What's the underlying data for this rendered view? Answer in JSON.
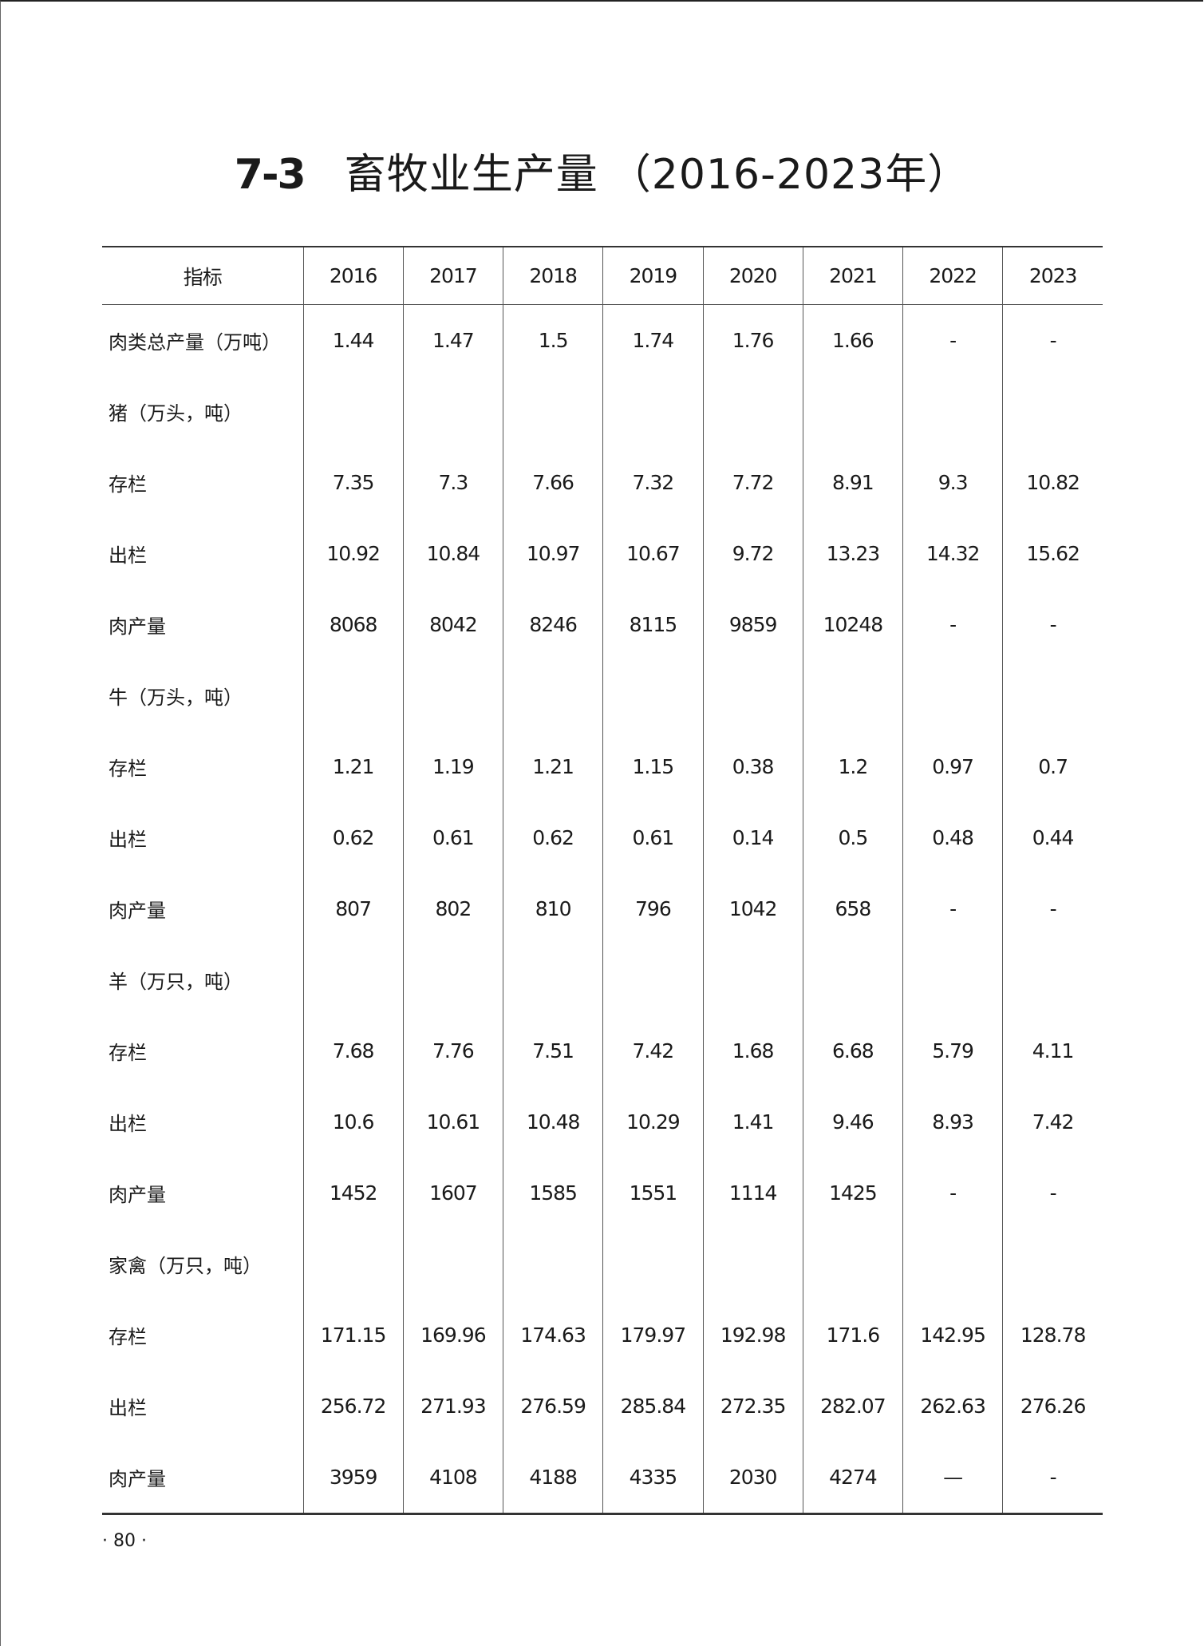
{
  "title": {
    "number": "7-3",
    "text": "畜牧业生产量",
    "range": "（2016-2023年）"
  },
  "table": {
    "headers": [
      "指标",
      "2016",
      "2017",
      "2018",
      "2019",
      "2020",
      "2021",
      "2022",
      "2023"
    ],
    "rows": [
      [
        "肉类总产量（万吨）",
        "1.44",
        "1.47",
        "1.5",
        "1.74",
        "1.76",
        "1.66",
        "-",
        "-"
      ],
      [
        "猪（万头，吨）",
        "",
        "",
        "",
        "",
        "",
        "",
        "",
        ""
      ],
      [
        "存栏",
        "7.35",
        "7.3",
        "7.66",
        "7.32",
        "7.72",
        "8.91",
        "9.3",
        "10.82"
      ],
      [
        "出栏",
        "10.92",
        "10.84",
        "10.97",
        "10.67",
        "9.72",
        "13.23",
        "14.32",
        "15.62"
      ],
      [
        "肉产量",
        "8068",
        "8042",
        "8246",
        "8115",
        "9859",
        "10248",
        "-",
        "-"
      ],
      [
        "牛（万头，吨）",
        "",
        "",
        "",
        "",
        "",
        "",
        "",
        ""
      ],
      [
        "存栏",
        "1.21",
        "1.19",
        "1.21",
        "1.15",
        "0.38",
        "1.2",
        "0.97",
        "0.7"
      ],
      [
        "出栏",
        "0.62",
        "0.61",
        "0.62",
        "0.61",
        "0.14",
        "0.5",
        "0.48",
        "0.44"
      ],
      [
        "肉产量",
        "807",
        "802",
        "810",
        "796",
        "1042",
        "658",
        "-",
        "-"
      ],
      [
        "羊（万只，吨）",
        "",
        "",
        "",
        "",
        "",
        "",
        "",
        ""
      ],
      [
        "存栏",
        "7.68",
        "7.76",
        "7.51",
        "7.42",
        "1.68",
        "6.68",
        "5.79",
        "4.11"
      ],
      [
        "出栏",
        "10.6",
        "10.61",
        "10.48",
        "10.29",
        "1.41",
        "9.46",
        "8.93",
        "7.42"
      ],
      [
        "肉产量",
        "1452",
        "1607",
        "1585",
        "1551",
        "1114",
        "1425",
        "-",
        "-"
      ],
      [
        "家禽（万只，吨）",
        "",
        "",
        "",
        "",
        "",
        "",
        "",
        ""
      ],
      [
        "存栏",
        "171.15",
        "169.96",
        "174.63",
        "179.97",
        "192.98",
        "171.6",
        "142.95",
        "128.78"
      ],
      [
        "出栏",
        "256.72",
        "271.93",
        "276.59",
        "285.84",
        "272.35",
        "282.07",
        "262.63",
        "276.26"
      ],
      [
        "肉产量",
        "3959",
        "4108",
        "4188",
        "4335",
        "2030",
        "4274",
        "—",
        "-"
      ]
    ]
  },
  "footer": {
    "page_number": "·   80  ·"
  }
}
